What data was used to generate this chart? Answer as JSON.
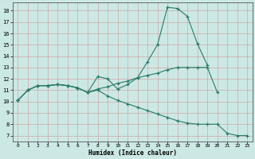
{
  "xlabel": "Humidex (Indice chaleur)",
  "bg_color": "#cce8e4",
  "line_color": "#2a7a68",
  "xlim": [
    -0.5,
    23.5
  ],
  "ylim": [
    6.5,
    18.7
  ],
  "xticks": [
    0,
    1,
    2,
    3,
    4,
    5,
    6,
    7,
    8,
    9,
    10,
    11,
    12,
    13,
    14,
    15,
    16,
    17,
    18,
    19,
    20,
    21,
    22,
    23
  ],
  "yticks": [
    7,
    8,
    9,
    10,
    11,
    12,
    13,
    14,
    15,
    16,
    17,
    18
  ],
  "line1_x": [
    0,
    1,
    2,
    3,
    4,
    5,
    6,
    7,
    8,
    9,
    10,
    11,
    12,
    13,
    14,
    15,
    16,
    17,
    18,
    19,
    20,
    21,
    22,
    23
  ],
  "line1_y": [
    10.1,
    11.0,
    11.4,
    11.4,
    11.5,
    11.4,
    11.2,
    10.8,
    12.2,
    12.0,
    11.1,
    11.5,
    12.1,
    13.5,
    15.0,
    18.3,
    18.2,
    17.5,
    15.1,
    13.2,
    null,
    null,
    null,
    null
  ],
  "line2_x": [
    0,
    1,
    2,
    3,
    4,
    5,
    6,
    7,
    8,
    9,
    10,
    11,
    12,
    13,
    14,
    15,
    16,
    17,
    18,
    19,
    20,
    21,
    22,
    23
  ],
  "line2_y": [
    10.1,
    11.0,
    11.4,
    11.4,
    11.5,
    11.4,
    11.2,
    10.8,
    11.1,
    11.3,
    11.6,
    11.8,
    12.1,
    12.3,
    12.5,
    12.8,
    13.0,
    13.0,
    13.0,
    13.0,
    10.8,
    null,
    null,
    null
  ],
  "line3_x": [
    0,
    1,
    2,
    3,
    4,
    5,
    6,
    7,
    8,
    9,
    10,
    11,
    12,
    13,
    14,
    15,
    16,
    17,
    18,
    19,
    20,
    21,
    22,
    23
  ],
  "line3_y": [
    10.1,
    11.0,
    11.4,
    11.4,
    11.5,
    11.4,
    11.2,
    10.8,
    11.0,
    10.5,
    10.1,
    9.8,
    9.5,
    9.2,
    8.9,
    8.6,
    8.3,
    8.1,
    8.0,
    8.0,
    8.0,
    7.2,
    7.0,
    7.0
  ]
}
